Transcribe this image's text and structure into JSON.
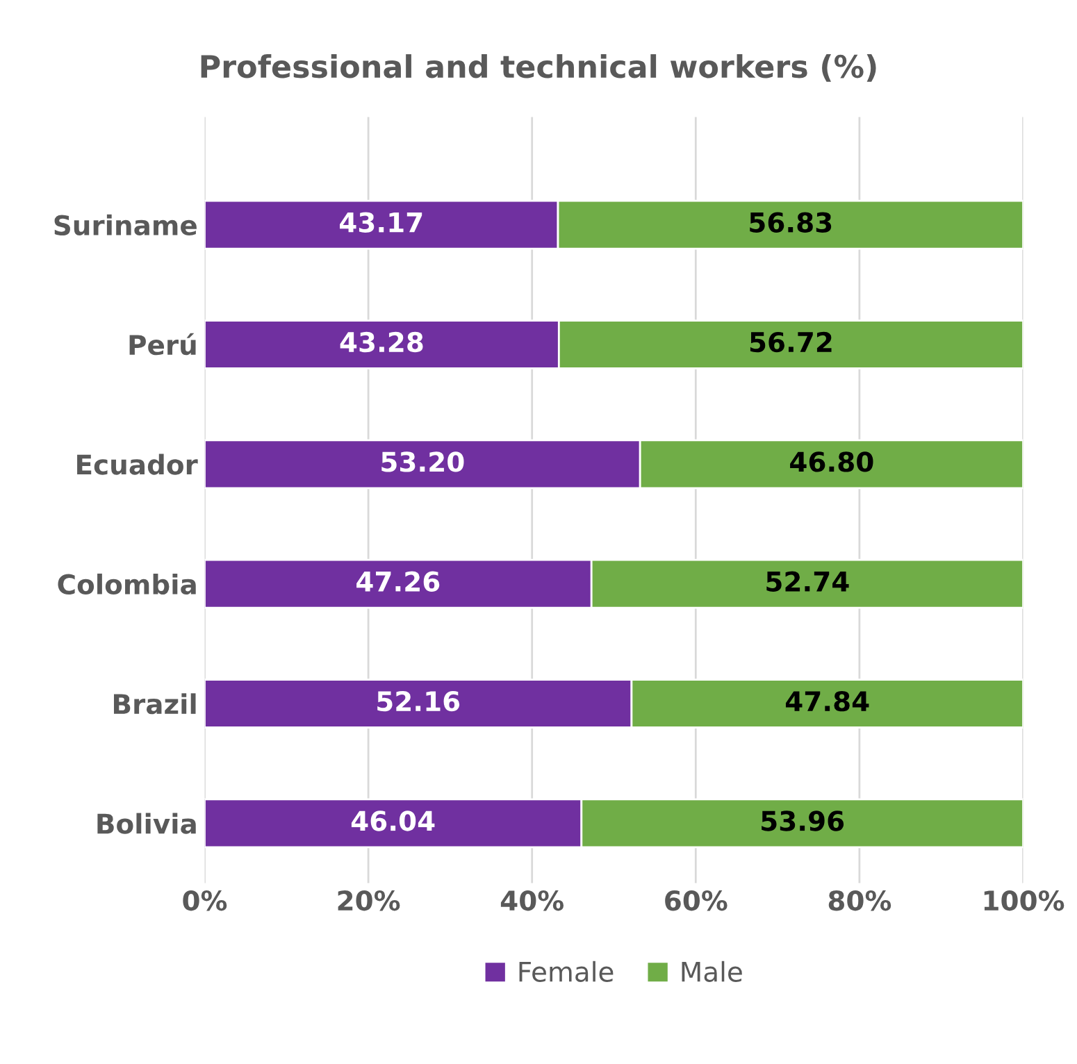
{
  "chart_data": {
    "type": "bar",
    "orientation": "horizontal",
    "stacked": true,
    "title": "Professional and technical workers (%)",
    "categories": [
      "Suriname",
      "Perú",
      "Ecuador",
      "Colombia",
      "Brazil",
      "Bolivia"
    ],
    "series": [
      {
        "name": "Female",
        "color": "#7030a0",
        "values": [
          43.17,
          43.28,
          53.2,
          47.26,
          52.16,
          46.04
        ],
        "value_labels": [
          "43.17",
          "43.28",
          "53.20",
          "47.26",
          "52.16",
          "46.04"
        ]
      },
      {
        "name": "Male",
        "color": "#70ad47",
        "values": [
          56.83,
          56.72,
          46.8,
          52.74,
          47.84,
          53.96
        ],
        "value_labels": [
          "56.83",
          "56.72",
          "46.80",
          "52.74",
          "47.84",
          "53.96"
        ]
      }
    ],
    "xlim": [
      0,
      100
    ],
    "xticks": [
      {
        "value": 0,
        "label": "0%"
      },
      {
        "value": 20,
        "label": "20%"
      },
      {
        "value": 40,
        "label": "40%"
      },
      {
        "value": 60,
        "label": "60%"
      },
      {
        "value": 80,
        "label": "80%"
      },
      {
        "value": 100,
        "label": "100%"
      }
    ],
    "grid": "x",
    "legend": "bottom"
  }
}
